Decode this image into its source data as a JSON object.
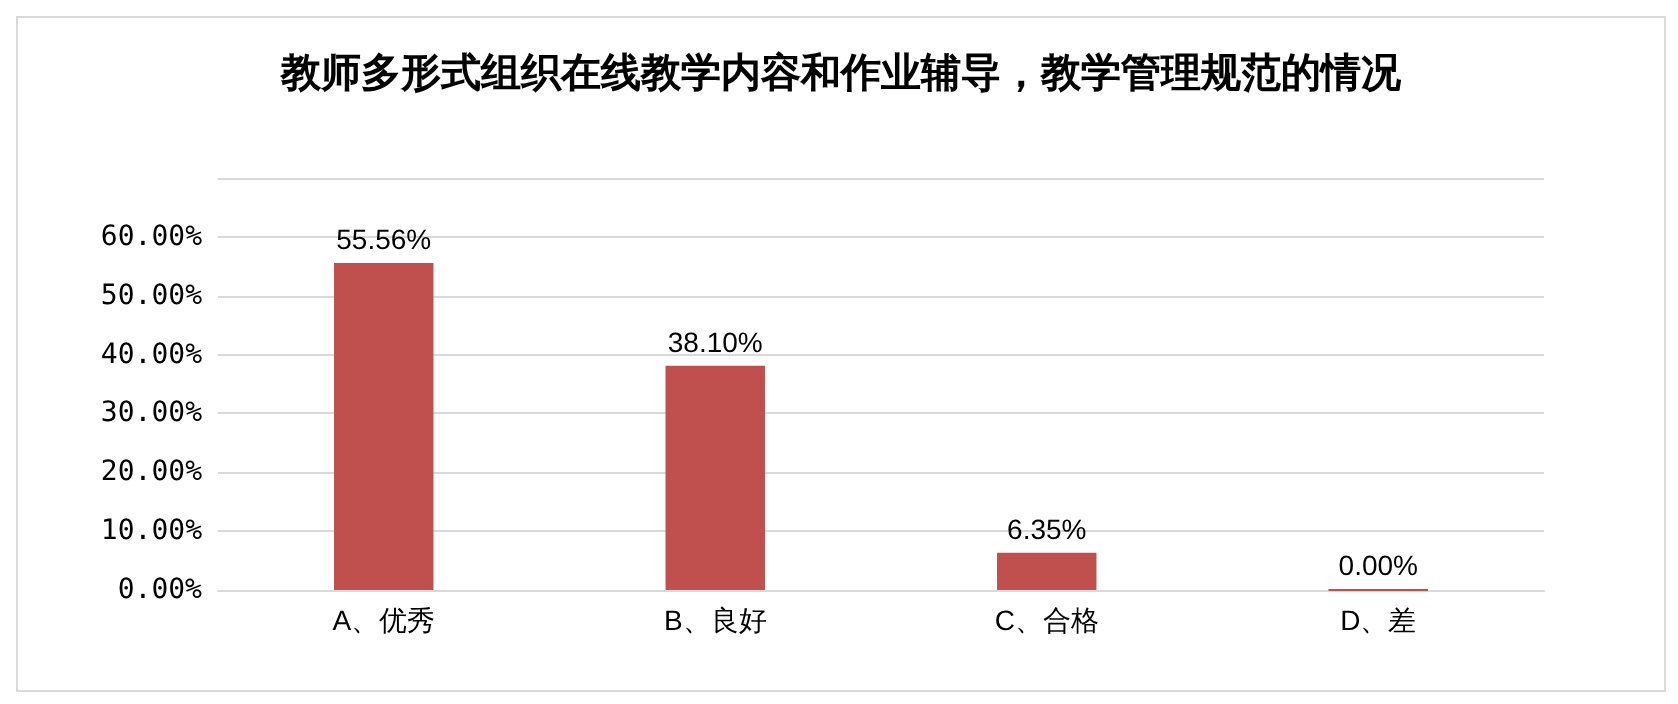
{
  "chart_data": {
    "type": "bar",
    "title": "教师多形式组织在线教学内容和作业辅导，教学管理规范的情况",
    "categories": [
      "A、优秀",
      "B、良好",
      "C、合格",
      "D、差"
    ],
    "values": [
      55.56,
      38.1,
      6.35,
      0.0
    ],
    "value_labels": [
      "55.56%",
      "38.10%",
      "6.35%",
      "0.00%"
    ],
    "color": "#c0504d",
    "ylim": [
      0,
      70
    ],
    "yticks": [
      {
        "value": 0,
        "label": "0.00%"
      },
      {
        "value": 10,
        "label": "10.00%"
      },
      {
        "value": 20,
        "label": "20.00%"
      },
      {
        "value": 30,
        "label": "30.00%"
      },
      {
        "value": 40,
        "label": "40.00%"
      },
      {
        "value": 50,
        "label": "50.00%"
      },
      {
        "value": 60,
        "label": "60.00%"
      },
      {
        "value": 70,
        "label": null
      }
    ],
    "grid": true
  }
}
